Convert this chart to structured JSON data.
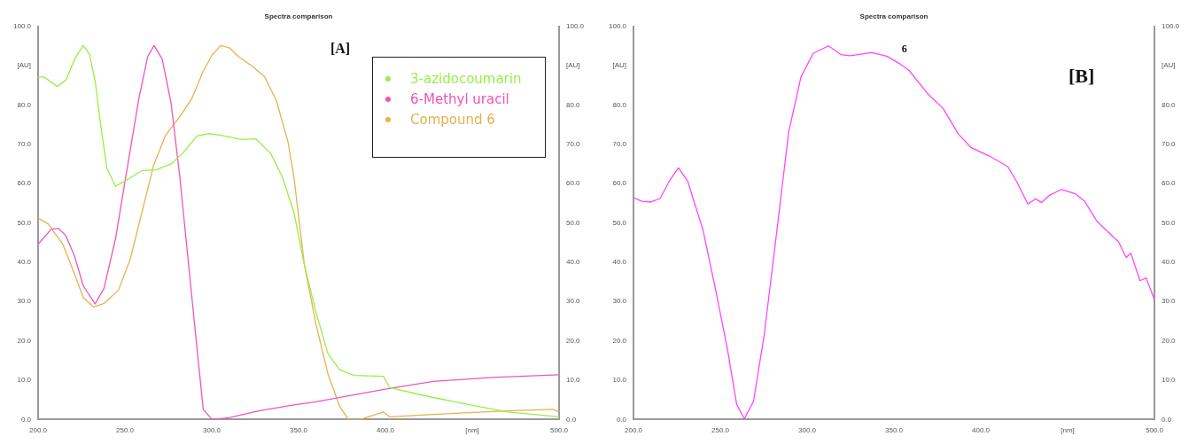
{
  "chart_data": [
    {
      "type": "line",
      "title": "Spectra comparison",
      "annotations": [
        "[A]"
      ],
      "legend": "top right",
      "marker": "none",
      "line_style": "solid",
      "grid": false,
      "xlim": [
        200,
        500
      ],
      "xticks": [
        {
          "value": 200,
          "label": "200.0"
        },
        {
          "value": 250,
          "label": "250.0"
        },
        {
          "value": 300,
          "label": "300.0"
        },
        {
          "value": 350,
          "label": "350.0"
        },
        {
          "value": 400,
          "label": "400.0"
        },
        {
          "value": 450,
          "label": "[nm]"
        },
        {
          "value": 500,
          "label": "500.0"
        }
      ],
      "ylim": [
        0,
        100
      ],
      "yticks": [
        {
          "value": 0,
          "label": "0.0"
        },
        {
          "value": 10,
          "label": "10.0"
        },
        {
          "value": 20,
          "label": "20.0"
        },
        {
          "value": 30,
          "label": "30.0"
        },
        {
          "value": 40,
          "label": "40.0"
        },
        {
          "value": 50,
          "label": "50.0"
        },
        {
          "value": 60,
          "label": "60.0"
        },
        {
          "value": 70,
          "label": "70.0"
        },
        {
          "value": 80,
          "label": "80.0"
        },
        {
          "value": 90,
          "label": "[AU]"
        },
        {
          "value": 100,
          "label": "100.0"
        }
      ],
      "y2lim": [
        0,
        100
      ],
      "y2ticks": [
        {
          "value": 0,
          "label": "0.0"
        },
        {
          "value": 10,
          "label": "10.0"
        },
        {
          "value": 20,
          "label": "20.0"
        },
        {
          "value": 30,
          "label": "30.0"
        },
        {
          "value": 40,
          "label": "40.0"
        },
        {
          "value": 50,
          "label": "50.0"
        },
        {
          "value": 60,
          "label": "60.0"
        },
        {
          "value": 70,
          "label": "70.0"
        },
        {
          "value": 80,
          "label": "80.0"
        },
        {
          "value": 90,
          "label": "[AU]"
        },
        {
          "value": 100,
          "label": "100.0"
        }
      ],
      "series": [
        {
          "name": "3-azidocoumarin",
          "color": "#99ee44",
          "x": [
            200,
            203.4,
            211,
            216,
            221,
            226,
            229.5,
            233,
            236,
            239.6,
            244.6,
            251.3,
            259.8,
            268,
            276.6,
            283,
            291.6,
            298.5,
            307,
            317,
            325.4,
            334,
            340.6,
            347.3,
            353.4,
            360,
            366.9,
            373.6,
            382,
            398.9,
            402.3,
            419.1,
            444.4,
            469.7,
            500
          ],
          "values": [
            87.1,
            87.1,
            84.7,
            86.3,
            91.6,
            95.1,
            93,
            85.6,
            75,
            63.9,
            59.3,
            61,
            63.3,
            63.5,
            65,
            67.6,
            72.1,
            72.7,
            72.1,
            71.2,
            71.4,
            67.6,
            61.7,
            52.7,
            39.2,
            27.3,
            16.8,
            12.7,
            11.2,
            11,
            8.2,
            6.4,
            4.1,
            2,
            0.7
          ]
        },
        {
          "name": "6-Methyl uracil",
          "color": "#ee55bb",
          "x": [
            200,
            207.6,
            211.8,
            216,
            221,
            226,
            232.8,
            237.9,
            244.6,
            251.3,
            258.1,
            263.1,
            266.8,
            271.5,
            276.6,
            281.6,
            286.7,
            291.8,
            295.1,
            300.2,
            310.3,
            327.1,
            347.3,
            360,
            400.6,
            427.6,
            461.3,
            500
          ],
          "values": [
            44.6,
            48.4,
            48.6,
            46.7,
            41.5,
            34,
            29.4,
            33.3,
            46,
            63.9,
            81.8,
            92.3,
            95.1,
            91.6,
            80.4,
            61.7,
            39.2,
            16.8,
            2.6,
            0,
            0.5,
            2.2,
            3.7,
            4.5,
            7.8,
            9.7,
            10.7,
            11.4
          ]
        },
        {
          "name": "Compound 6",
          "color": "#e8b050",
          "x": [
            200,
            205.9,
            214.3,
            221,
            226,
            232,
            237.9,
            246.3,
            253,
            259.8,
            266.5,
            273.2,
            281.6,
            288.4,
            295.1,
            300.2,
            305.2,
            310.3,
            315.3,
            323.7,
            330.5,
            337.2,
            343.9,
            347.3,
            353.4,
            360,
            366.9,
            373.6,
            378.7,
            385.4,
            398.9,
            402.3,
            427.6,
            469.7,
            496.6,
            500
          ],
          "values": [
            51.2,
            49.7,
            44.5,
            37,
            31,
            28.6,
            29.5,
            32.9,
            40.7,
            52.7,
            64.6,
            72.1,
            77,
            81.5,
            88.6,
            92.7,
            95.1,
            94.5,
            92.3,
            89.7,
            87.1,
            81.1,
            70.6,
            61.7,
            39.2,
            24.3,
            11.6,
            3.4,
            0,
            0,
            1.9,
            0.7,
            1.3,
            2.2,
            2.6,
            1.9
          ]
        }
      ]
    },
    {
      "type": "line",
      "title": "Spectra comparison",
      "annotations": [
        "6",
        "[B]"
      ],
      "marker": "none",
      "line_style": "solid",
      "grid": false,
      "xlim": [
        200,
        500
      ],
      "xticks": [
        {
          "value": 200,
          "label": "200.0"
        },
        {
          "value": 250,
          "label": "250.0"
        },
        {
          "value": 300,
          "label": "300.0"
        },
        {
          "value": 350,
          "label": "350.0"
        },
        {
          "value": 400,
          "label": "400.0"
        },
        {
          "value": 450,
          "label": "[nm]"
        },
        {
          "value": 500,
          "label": "500.0"
        }
      ],
      "ylim": [
        0,
        100
      ],
      "yticks": [
        {
          "value": 0,
          "label": "0.0"
        },
        {
          "value": 10,
          "label": "10.0"
        },
        {
          "value": 20,
          "label": "20.0"
        },
        {
          "value": 30,
          "label": "30.0"
        },
        {
          "value": 40,
          "label": "40.0"
        },
        {
          "value": 50,
          "label": "50.0"
        },
        {
          "value": 60,
          "label": "60.0"
        },
        {
          "value": 70,
          "label": "70.0"
        },
        {
          "value": 80,
          "label": "80.0"
        },
        {
          "value": 90,
          "label": "[AU]"
        },
        {
          "value": 100,
          "label": "100.0"
        }
      ],
      "y2lim": [
        0,
        100
      ],
      "y2ticks": [
        {
          "value": 0,
          "label": "0.0"
        },
        {
          "value": 10,
          "label": "10.0"
        },
        {
          "value": 20,
          "label": "20.0"
        },
        {
          "value": 30,
          "label": "30.0"
        },
        {
          "value": 40,
          "label": "40.0"
        },
        {
          "value": 50,
          "label": "50.0"
        },
        {
          "value": 60,
          "label": "60.0"
        },
        {
          "value": 70,
          "label": "70.0"
        },
        {
          "value": 80,
          "label": "80.0"
        },
        {
          "value": 90,
          "label": "[AU]"
        },
        {
          "value": 100,
          "label": "100.0"
        }
      ],
      "series": [
        {
          "color": "#ff44ff",
          "x": [
            200,
            204.8,
            210,
            215.3,
            220.6,
            225.9,
            231.2,
            240,
            247.1,
            254.1,
            259.4,
            263.8,
            269.1,
            275.3,
            282.4,
            289.4,
            296.5,
            303.5,
            312.3,
            319.4,
            324.7,
            337,
            345.9,
            352.9,
            358.8,
            369.5,
            378.3,
            387.2,
            394.3,
            404.9,
            415.6,
            420.9,
            427.1,
            431.5,
            435,
            439.5,
            446.5,
            454.5,
            459.8,
            466.9,
            474,
            479.3,
            483.7,
            486.4,
            491.7,
            495.2,
            500
          ],
          "values": [
            56.4,
            55.5,
            55.3,
            56.2,
            60.6,
            64,
            60.6,
            48.2,
            33.4,
            17.9,
            3.9,
            0.2,
            4.6,
            21.6,
            47.4,
            73.2,
            87.2,
            93.1,
            95,
            92.8,
            92.5,
            93.3,
            92.4,
            90.6,
            88.7,
            82.8,
            79.1,
            72.5,
            69.2,
            67,
            64.3,
            60.3,
            54.8,
            56.1,
            55.2,
            57,
            58.5,
            57.4,
            55.5,
            50.4,
            47.4,
            45.2,
            41.2,
            42.3,
            35.3,
            36,
            30.5
          ]
        }
      ]
    }
  ]
}
